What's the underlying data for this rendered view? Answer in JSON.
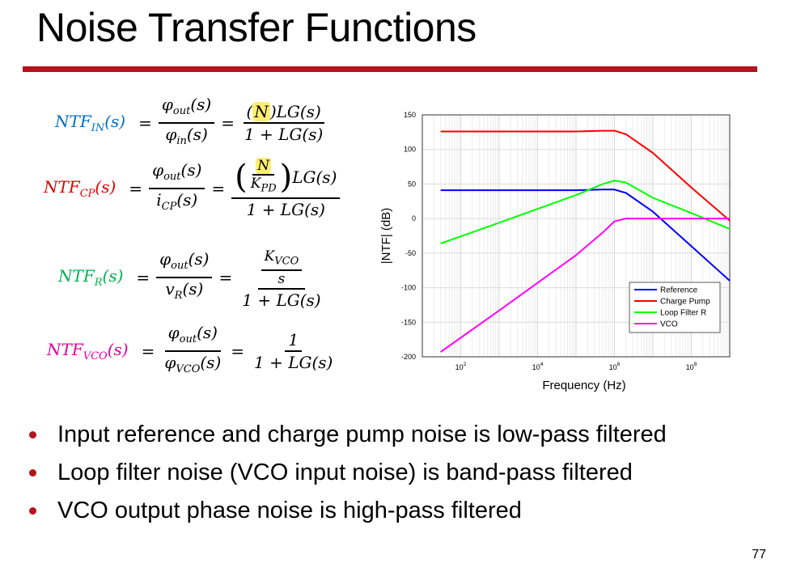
{
  "slide": {
    "title": "Noise Transfer Functions",
    "page_number": "77",
    "bullets": [
      "Input reference and charge pump noise is low-pass filtered",
      "Loop filter noise (VCO input noise) is band-pass filtered",
      "VCO output phase noise is high-pass filtered"
    ]
  },
  "equations": {
    "in": {
      "lhs_main": "NTF",
      "lhs_sub": "IN",
      "lhs_arg": "(s)",
      "num1": "φ",
      "num1_sub": "out",
      "num1_arg": "(s)",
      "den1": "φ",
      "den1_sub": "in",
      "den1_arg": "(s)",
      "num2_pre": "(",
      "num2_hl": "N",
      "num2_post": ")LG(s)",
      "den2": "1 + LG(s)",
      "eq": "="
    },
    "cp": {
      "lhs_main": "NTF",
      "lhs_sub": "CP",
      "lhs_arg": "(s)",
      "num1": "φ",
      "num1_sub": "out",
      "num1_arg": "(s)",
      "den1": "i",
      "den1_sub": "CP",
      "den1_arg": "(s)",
      "inner_num": "N",
      "inner_den": "K",
      "inner_den_sub": "PD",
      "lparen": "(",
      "rparen": ")",
      "num2_post": "LG(s)",
      "den2": "1 + LG(s)",
      "eq": "="
    },
    "r": {
      "lhs_main": "NTF",
      "lhs_sub": "R",
      "lhs_arg": "(s)",
      "num1": "φ",
      "num1_sub": "out",
      "num1_arg": "(s)",
      "den1": "v",
      "den1_sub": "R",
      "den1_arg": "(s)",
      "inner_num": "K",
      "inner_num_sub": "VCO",
      "inner_den": "s",
      "den2": "1 + LG(s)",
      "eq": "="
    },
    "vco": {
      "lhs_main": "NTF",
      "lhs_sub": "VCO",
      "lhs_arg": "(s)",
      "num1": "φ",
      "num1_sub": "out",
      "num1_arg": "(s)",
      "den1": "φ",
      "den1_sub": "VCO",
      "den1_arg": "(s)",
      "num2": "1",
      "den2": "1 + LG(s)",
      "eq": "="
    }
  },
  "chart_data": {
    "type": "line",
    "title": "",
    "xlabel": "Frequency (Hz)",
    "ylabel": "|NTF| (dB)",
    "xscale": "log",
    "xlim": [
      10,
      1000000000
    ],
    "ylim": [
      -200,
      150
    ],
    "yticks": [
      150,
      100,
      50,
      0,
      -50,
      -100,
      -150,
      -200
    ],
    "xticks": [
      {
        "base": "10",
        "exp": "2",
        "value": 100
      },
      {
        "base": "10",
        "exp": "4",
        "value": 10000
      },
      {
        "base": "10",
        "exp": "6",
        "value": 1000000
      },
      {
        "base": "10",
        "exp": "8",
        "value": 100000000
      }
    ],
    "grid": true,
    "legend_position": "bottom-right",
    "series": [
      {
        "name": "Reference",
        "color": "#0000ff",
        "x": [
          30,
          1000,
          100000,
          500000,
          1000000,
          2000000,
          10000000,
          100000000,
          1000000000
        ],
        "y": [
          41,
          41,
          41,
          42,
          42,
          37,
          10,
          -40,
          -90
        ]
      },
      {
        "name": "Charge Pump",
        "color": "#ff0000",
        "x": [
          30,
          1000,
          100000,
          500000,
          1000000,
          2000000,
          10000000,
          100000000,
          1000000000
        ],
        "y": [
          126,
          126,
          126,
          127,
          127,
          122,
          95,
          45,
          -3
        ]
      },
      {
        "name": "Loop Filter R",
        "color": "#00ff00",
        "x": [
          30,
          1000,
          10000,
          100000,
          500000,
          1000000,
          2000000,
          10000000,
          100000000,
          1000000000
        ],
        "y": [
          -36,
          -6,
          14,
          34,
          50,
          55,
          52,
          30,
          8,
          -15
        ]
      },
      {
        "name": "VCO",
        "color": "#ff00ff",
        "x": [
          30,
          1000,
          10000,
          100000,
          500000,
          1000000,
          2000000,
          10000000,
          100000000,
          1000000000
        ],
        "y": [
          -193,
          -133,
          -93,
          -53,
          -20,
          -4,
          0,
          0,
          0,
          0
        ]
      }
    ]
  }
}
